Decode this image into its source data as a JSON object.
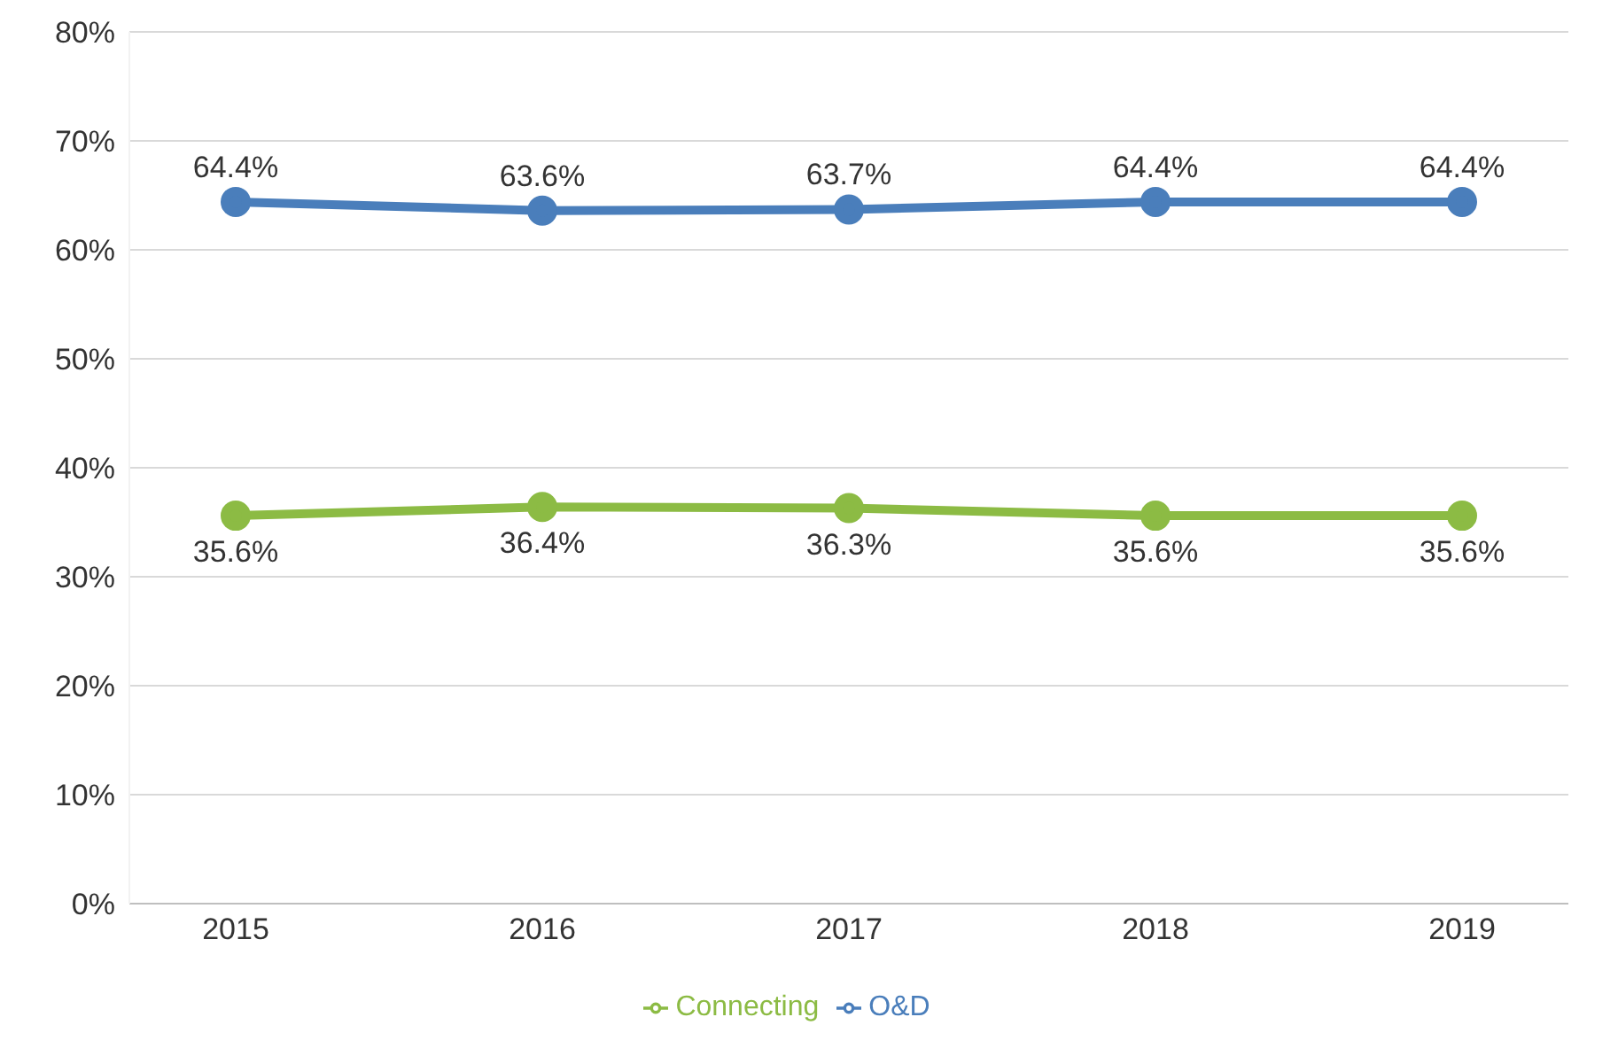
{
  "chart_data": {
    "type": "line",
    "categories": [
      "2015",
      "2016",
      "2017",
      "2018",
      "2019"
    ],
    "series": [
      {
        "name": "O&D",
        "color": "#4a7ebb",
        "values": [
          64.4,
          63.6,
          63.7,
          64.4,
          64.4
        ],
        "value_labels": [
          "64.4%",
          "63.6%",
          "63.7%",
          "64.4%",
          "64.4%"
        ]
      },
      {
        "name": "Connecting",
        "color": "#8cbb44",
        "values": [
          35.6,
          36.4,
          36.3,
          35.6,
          35.6
        ],
        "value_labels": [
          "35.6%",
          "36.4%",
          "36.3%",
          "35.6%",
          "35.6%"
        ]
      }
    ],
    "ylim": [
      0,
      80
    ],
    "yticks": [
      {
        "value": 0,
        "label": "0%"
      },
      {
        "value": 10,
        "label": "10%"
      },
      {
        "value": 20,
        "label": "20%"
      },
      {
        "value": 30,
        "label": "30%"
      },
      {
        "value": 40,
        "label": "40%"
      },
      {
        "value": 50,
        "label": "50%"
      },
      {
        "value": 60,
        "label": "60%"
      },
      {
        "value": 70,
        "label": "70%"
      },
      {
        "value": 80,
        "label": "80%"
      }
    ],
    "grid": "y",
    "legend": "bottom",
    "marker": "circle",
    "line_style": "solid"
  }
}
